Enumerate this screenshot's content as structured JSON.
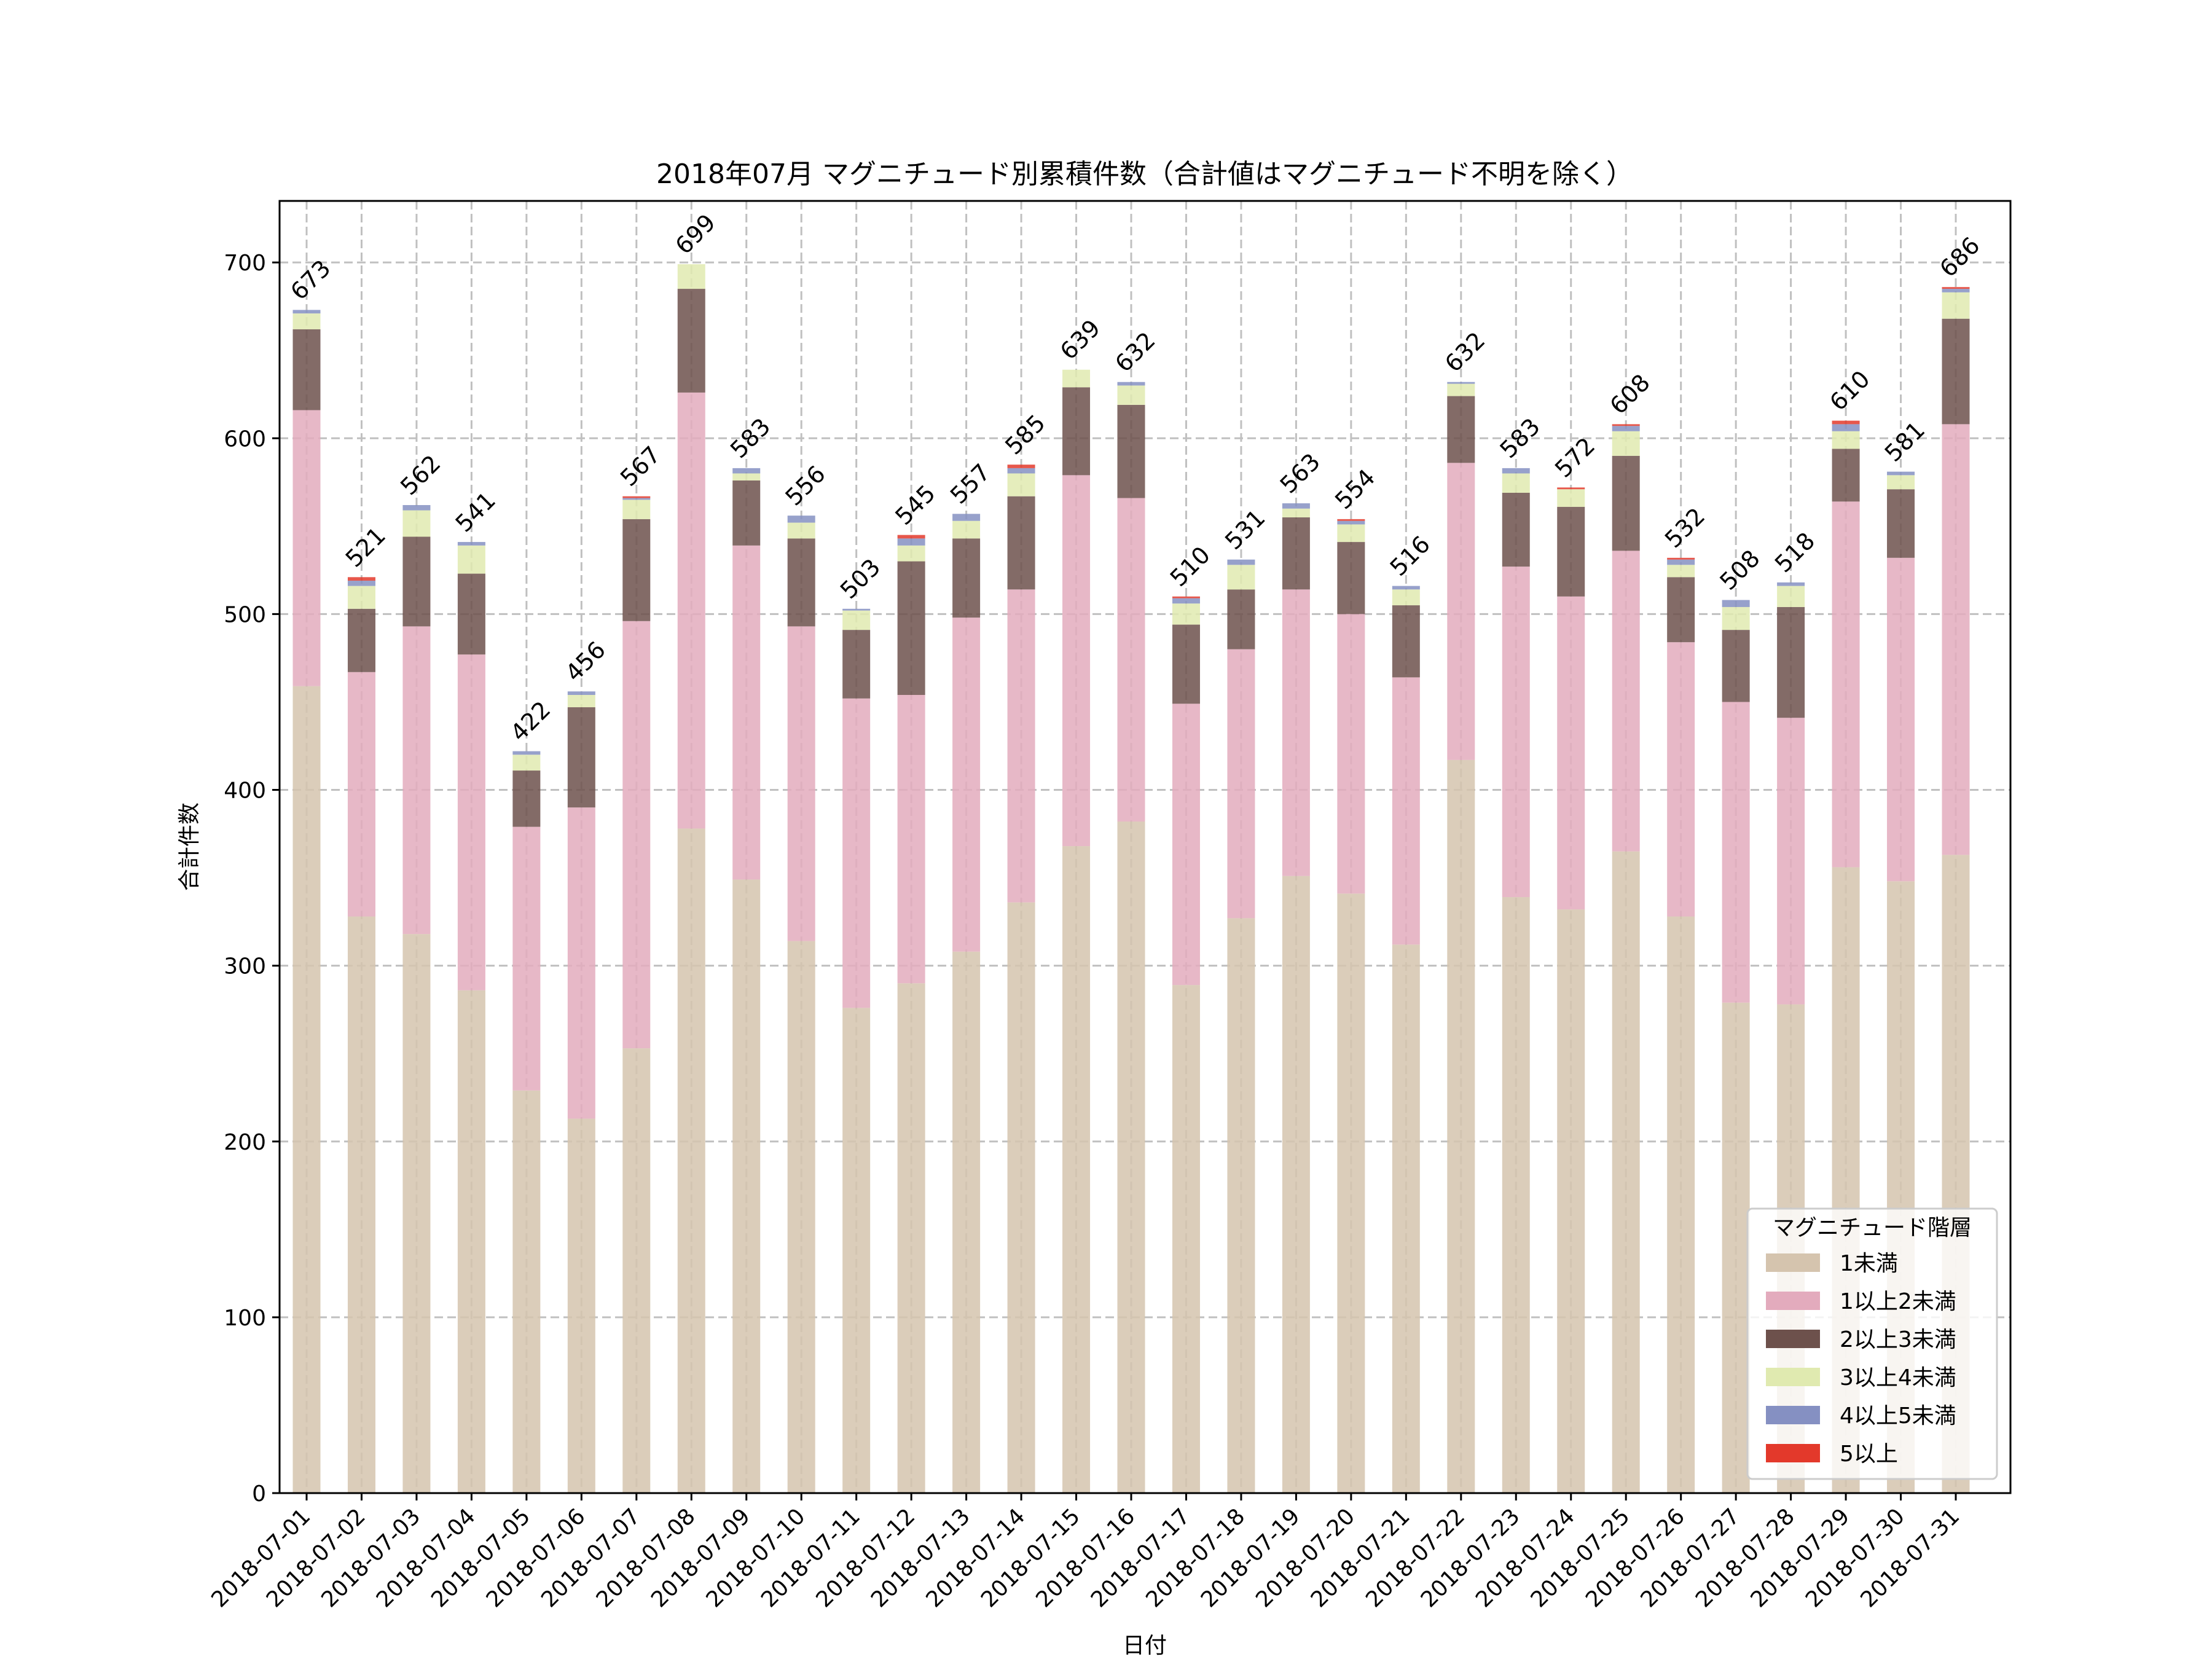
{
  "chart_data": {
    "type": "bar",
    "stacked": true,
    "title": "2018年07月 マグニチュード別累積件数（合計値はマグニチュード不明を除く）",
    "xlabel": "日付",
    "ylabel": "合計件数",
    "ylim": [
      0,
      735
    ],
    "yticks": [
      0,
      100,
      200,
      300,
      400,
      500,
      600,
      700
    ],
    "grid": true,
    "legend": {
      "title": "マグニチュード階層",
      "placement": "lower-right"
    },
    "categories": [
      "2018-07-01",
      "2018-07-02",
      "2018-07-03",
      "2018-07-04",
      "2018-07-05",
      "2018-07-06",
      "2018-07-07",
      "2018-07-08",
      "2018-07-09",
      "2018-07-10",
      "2018-07-11",
      "2018-07-12",
      "2018-07-13",
      "2018-07-14",
      "2018-07-15",
      "2018-07-16",
      "2018-07-17",
      "2018-07-18",
      "2018-07-19",
      "2018-07-20",
      "2018-07-21",
      "2018-07-22",
      "2018-07-23",
      "2018-07-24",
      "2018-07-25",
      "2018-07-26",
      "2018-07-27",
      "2018-07-28",
      "2018-07-29",
      "2018-07-30",
      "2018-07-31"
    ],
    "series": [
      {
        "name": "1未満",
        "color": "#d5c4ae",
        "values": [
          459,
          328,
          318,
          286,
          229,
          213,
          253,
          378,
          349,
          314,
          276,
          290,
          308,
          336,
          368,
          382,
          289,
          327,
          351,
          341,
          312,
          417,
          339,
          332,
          365,
          328,
          279,
          278,
          356,
          348,
          363
        ]
      },
      {
        "name": "1以上2未満",
        "color": "#e3abbd",
        "values": [
          157,
          139,
          175,
          191,
          150,
          177,
          243,
          248,
          190,
          179,
          176,
          164,
          190,
          178,
          211,
          184,
          160,
          153,
          163,
          159,
          152,
          169,
          188,
          178,
          171,
          156,
          171,
          163,
          208,
          184,
          245
        ]
      },
      {
        "name": "2以上3未満",
        "color": "#6d514c",
        "values": [
          46,
          36,
          51,
          46,
          32,
          57,
          58,
          59,
          37,
          50,
          39,
          76,
          45,
          53,
          50,
          53,
          45,
          34,
          41,
          41,
          41,
          38,
          42,
          51,
          54,
          37,
          41,
          63,
          30,
          39,
          60
        ]
      },
      {
        "name": "3以上4未満",
        "color": "#e0eab0",
        "values": [
          9,
          13,
          15,
          16,
          9,
          7,
          11,
          14,
          4,
          9,
          11,
          9,
          10,
          13,
          10,
          11,
          12,
          14,
          5,
          10,
          9,
          7,
          11,
          10,
          14,
          7,
          13,
          12,
          10,
          8,
          15
        ]
      },
      {
        "name": "4以上5未満",
        "color": "#8590c2",
        "values": [
          2,
          3,
          3,
          2,
          2,
          2,
          1,
          0,
          3,
          4,
          1,
          4,
          4,
          3,
          0,
          2,
          3,
          3,
          3,
          2,
          2,
          1,
          3,
          0,
          3,
          3,
          4,
          2,
          4,
          2,
          2
        ]
      },
      {
        "name": "5以上",
        "color": "#e3392b",
        "values": [
          0,
          2,
          0,
          0,
          0,
          0,
          1,
          0,
          0,
          0,
          0,
          2,
          0,
          2,
          0,
          0,
          1,
          0,
          0,
          1,
          0,
          0,
          0,
          1,
          1,
          1,
          0,
          0,
          2,
          0,
          1
        ]
      }
    ],
    "totals": [
      673,
      521,
      562,
      541,
      422,
      456,
      567,
      699,
      583,
      556,
      503,
      545,
      557,
      585,
      639,
      632,
      510,
      531,
      563,
      554,
      516,
      632,
      583,
      572,
      608,
      532,
      508,
      518,
      610,
      581,
      686
    ]
  }
}
